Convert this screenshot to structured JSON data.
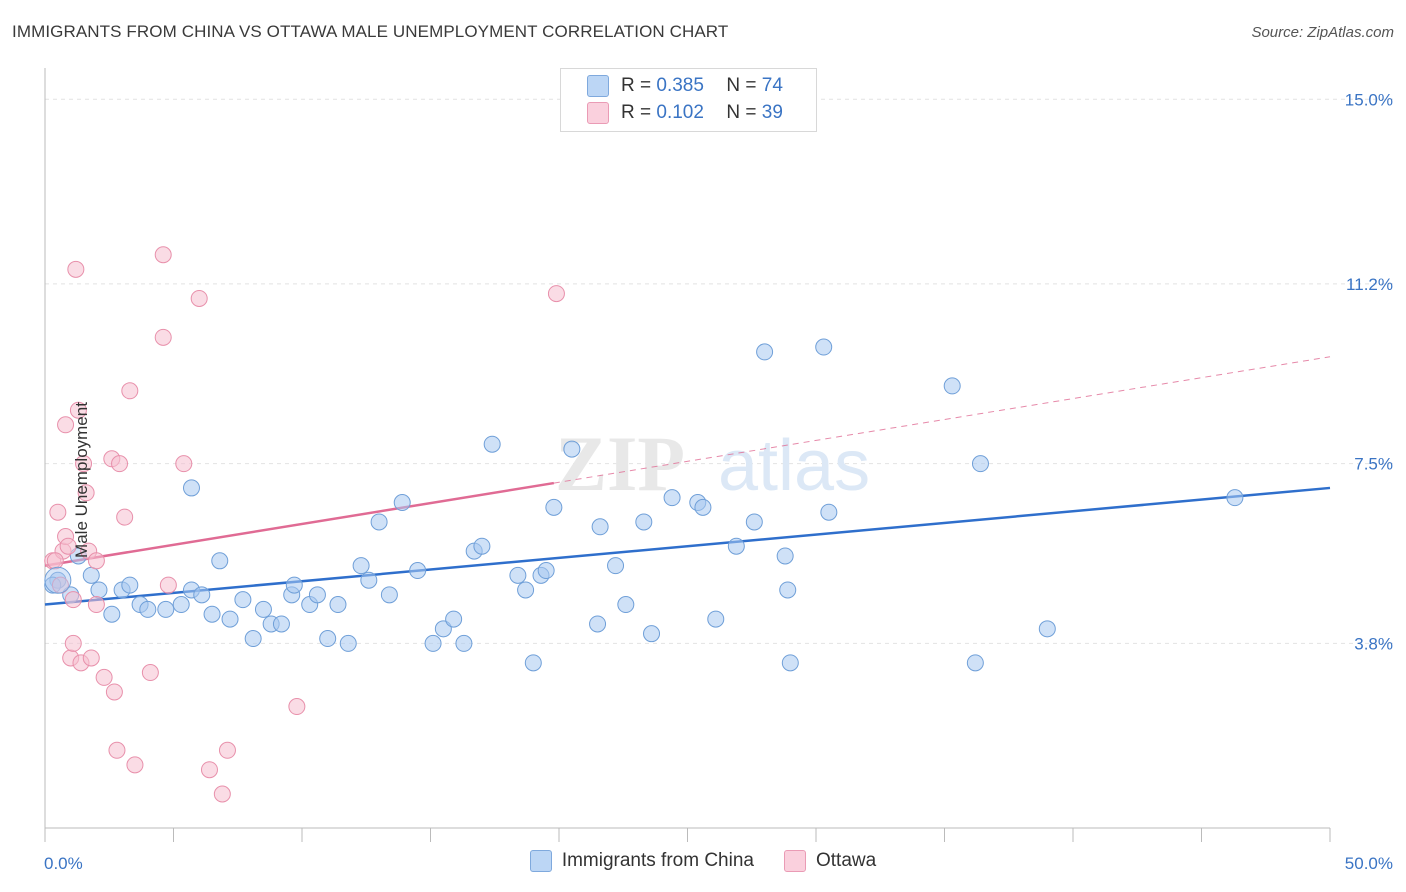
{
  "header": {
    "title": "IMMIGRANTS FROM CHINA VS OTTAWA MALE UNEMPLOYMENT CORRELATION CHART",
    "source": "Source: ZipAtlas.com"
  },
  "legend": {
    "rows": [
      {
        "r_label": "R =",
        "r_value": "0.385",
        "n_label": "N =",
        "n_value": "74"
      },
      {
        "r_label": "R =",
        "r_value": "0.102",
        "n_label": "N =",
        "n_value": "39"
      }
    ]
  },
  "watermark": {
    "zip": "ZIP",
    "atlas": "atlas"
  },
  "chart_data": {
    "type": "scatter",
    "title": "IMMIGRANTS FROM CHINA VS OTTAWA MALE UNEMPLOYMENT CORRELATION CHART",
    "xlabel": "",
    "ylabel": "Male Unemployment",
    "xlim": [
      0,
      50
    ],
    "ylim": [
      0,
      15.5
    ],
    "x_tick_labels": [
      "0.0%",
      "50.0%"
    ],
    "y_ticks": [
      3.8,
      7.5,
      11.2,
      15.0
    ],
    "y_tick_labels": [
      "3.8%",
      "7.5%",
      "11.2%",
      "15.0%"
    ],
    "grid": true,
    "legend_position": "top-center",
    "series": [
      {
        "name": "Immigrants from China",
        "color": "#a8c8f0",
        "stroke": "#6f9fd8",
        "trend_color": "#2f6fcc",
        "trend": {
          "x": [
            0,
            50
          ],
          "y": [
            4.6,
            7.0
          ]
        },
        "trend_dash": null,
        "points": [
          [
            0.5,
            5.1
          ],
          [
            1.0,
            4.8
          ],
          [
            1.3,
            5.6
          ],
          [
            1.8,
            5.2
          ],
          [
            2.1,
            4.9
          ],
          [
            2.6,
            4.4
          ],
          [
            3.0,
            4.9
          ],
          [
            3.3,
            5.0
          ],
          [
            3.7,
            4.6
          ],
          [
            4.0,
            4.5
          ],
          [
            4.7,
            4.5
          ],
          [
            5.3,
            4.6
          ],
          [
            5.7,
            7.0
          ],
          [
            5.7,
            4.9
          ],
          [
            6.1,
            4.8
          ],
          [
            6.5,
            4.4
          ],
          [
            6.8,
            5.5
          ],
          [
            7.2,
            4.3
          ],
          [
            7.7,
            4.7
          ],
          [
            8.1,
            3.9
          ],
          [
            8.5,
            4.5
          ],
          [
            8.8,
            4.2
          ],
          [
            9.2,
            4.2
          ],
          [
            9.6,
            4.8
          ],
          [
            9.7,
            5.0
          ],
          [
            10.3,
            4.6
          ],
          [
            10.6,
            4.8
          ],
          [
            11.0,
            3.9
          ],
          [
            11.4,
            4.6
          ],
          [
            11.8,
            3.8
          ],
          [
            12.3,
            5.4
          ],
          [
            12.6,
            5.1
          ],
          [
            13.0,
            6.3
          ],
          [
            13.4,
            4.8
          ],
          [
            13.9,
            6.7
          ],
          [
            14.5,
            5.3
          ],
          [
            15.1,
            3.8
          ],
          [
            15.5,
            4.1
          ],
          [
            15.9,
            4.3
          ],
          [
            16.3,
            3.8
          ],
          [
            16.7,
            5.7
          ],
          [
            17.0,
            5.8
          ],
          [
            17.4,
            7.9
          ],
          [
            18.4,
            5.2
          ],
          [
            18.7,
            4.9
          ],
          [
            19.0,
            3.4
          ],
          [
            19.3,
            5.2
          ],
          [
            19.5,
            5.3
          ],
          [
            19.8,
            6.6
          ],
          [
            20.5,
            7.8
          ],
          [
            21.5,
            4.2
          ],
          [
            21.6,
            6.2
          ],
          [
            22.2,
            5.4
          ],
          [
            22.6,
            4.6
          ],
          [
            23.3,
            6.3
          ],
          [
            23.6,
            4.0
          ],
          [
            24.4,
            6.8
          ],
          [
            25.4,
            6.7
          ],
          [
            25.6,
            6.6
          ],
          [
            26.1,
            4.3
          ],
          [
            26.9,
            5.8
          ],
          [
            27.6,
            6.3
          ],
          [
            28.0,
            9.8
          ],
          [
            28.8,
            5.6
          ],
          [
            28.9,
            4.9
          ],
          [
            29.0,
            3.4
          ],
          [
            30.3,
            9.9
          ],
          [
            30.5,
            6.5
          ],
          [
            35.3,
            9.1
          ],
          [
            36.2,
            3.4
          ],
          [
            36.4,
            7.5
          ],
          [
            39.0,
            4.1
          ],
          [
            46.3,
            6.8
          ],
          [
            0.3,
            5.0
          ]
        ]
      },
      {
        "name": "Ottawa",
        "color": "#f6bfd0",
        "stroke": "#e890ab",
        "trend_color": "#e06b94",
        "trend": {
          "x": [
            0,
            19.8
          ],
          "y": [
            5.4,
            7.1
          ]
        },
        "trend_ext": {
          "x": [
            19.8,
            50
          ],
          "y": [
            7.1,
            9.7
          ]
        },
        "points": [
          [
            0.3,
            5.5
          ],
          [
            0.5,
            6.5
          ],
          [
            0.6,
            5.0
          ],
          [
            0.7,
            5.7
          ],
          [
            0.8,
            8.3
          ],
          [
            0.8,
            6.0
          ],
          [
            0.9,
            5.8
          ],
          [
            1.0,
            3.5
          ],
          [
            1.1,
            4.7
          ],
          [
            1.1,
            3.8
          ],
          [
            1.2,
            11.5
          ],
          [
            1.3,
            8.6
          ],
          [
            1.4,
            3.4
          ],
          [
            1.5,
            7.5
          ],
          [
            1.6,
            6.9
          ],
          [
            1.7,
            5.7
          ],
          [
            1.8,
            3.5
          ],
          [
            2.0,
            5.5
          ],
          [
            2.0,
            4.6
          ],
          [
            2.3,
            3.1
          ],
          [
            2.6,
            7.6
          ],
          [
            2.7,
            2.8
          ],
          [
            2.8,
            1.6
          ],
          [
            2.9,
            7.5
          ],
          [
            3.1,
            6.4
          ],
          [
            3.3,
            9.0
          ],
          [
            3.5,
            1.3
          ],
          [
            4.1,
            3.2
          ],
          [
            4.6,
            11.8
          ],
          [
            4.6,
            10.1
          ],
          [
            4.8,
            5.0
          ],
          [
            5.4,
            7.5
          ],
          [
            6.0,
            10.9
          ],
          [
            6.4,
            1.2
          ],
          [
            6.9,
            0.7
          ],
          [
            7.1,
            1.6
          ],
          [
            9.8,
            2.5
          ],
          [
            19.9,
            11.0
          ],
          [
            0.4,
            5.5
          ]
        ]
      }
    ]
  },
  "bottom_legend": [
    {
      "label": "Immigrants from China",
      "color": "#bcd6f5",
      "stroke": "#7fa9dd"
    },
    {
      "label": "Ottawa",
      "color": "#fad0dd",
      "stroke": "#ea9bb5"
    }
  ]
}
